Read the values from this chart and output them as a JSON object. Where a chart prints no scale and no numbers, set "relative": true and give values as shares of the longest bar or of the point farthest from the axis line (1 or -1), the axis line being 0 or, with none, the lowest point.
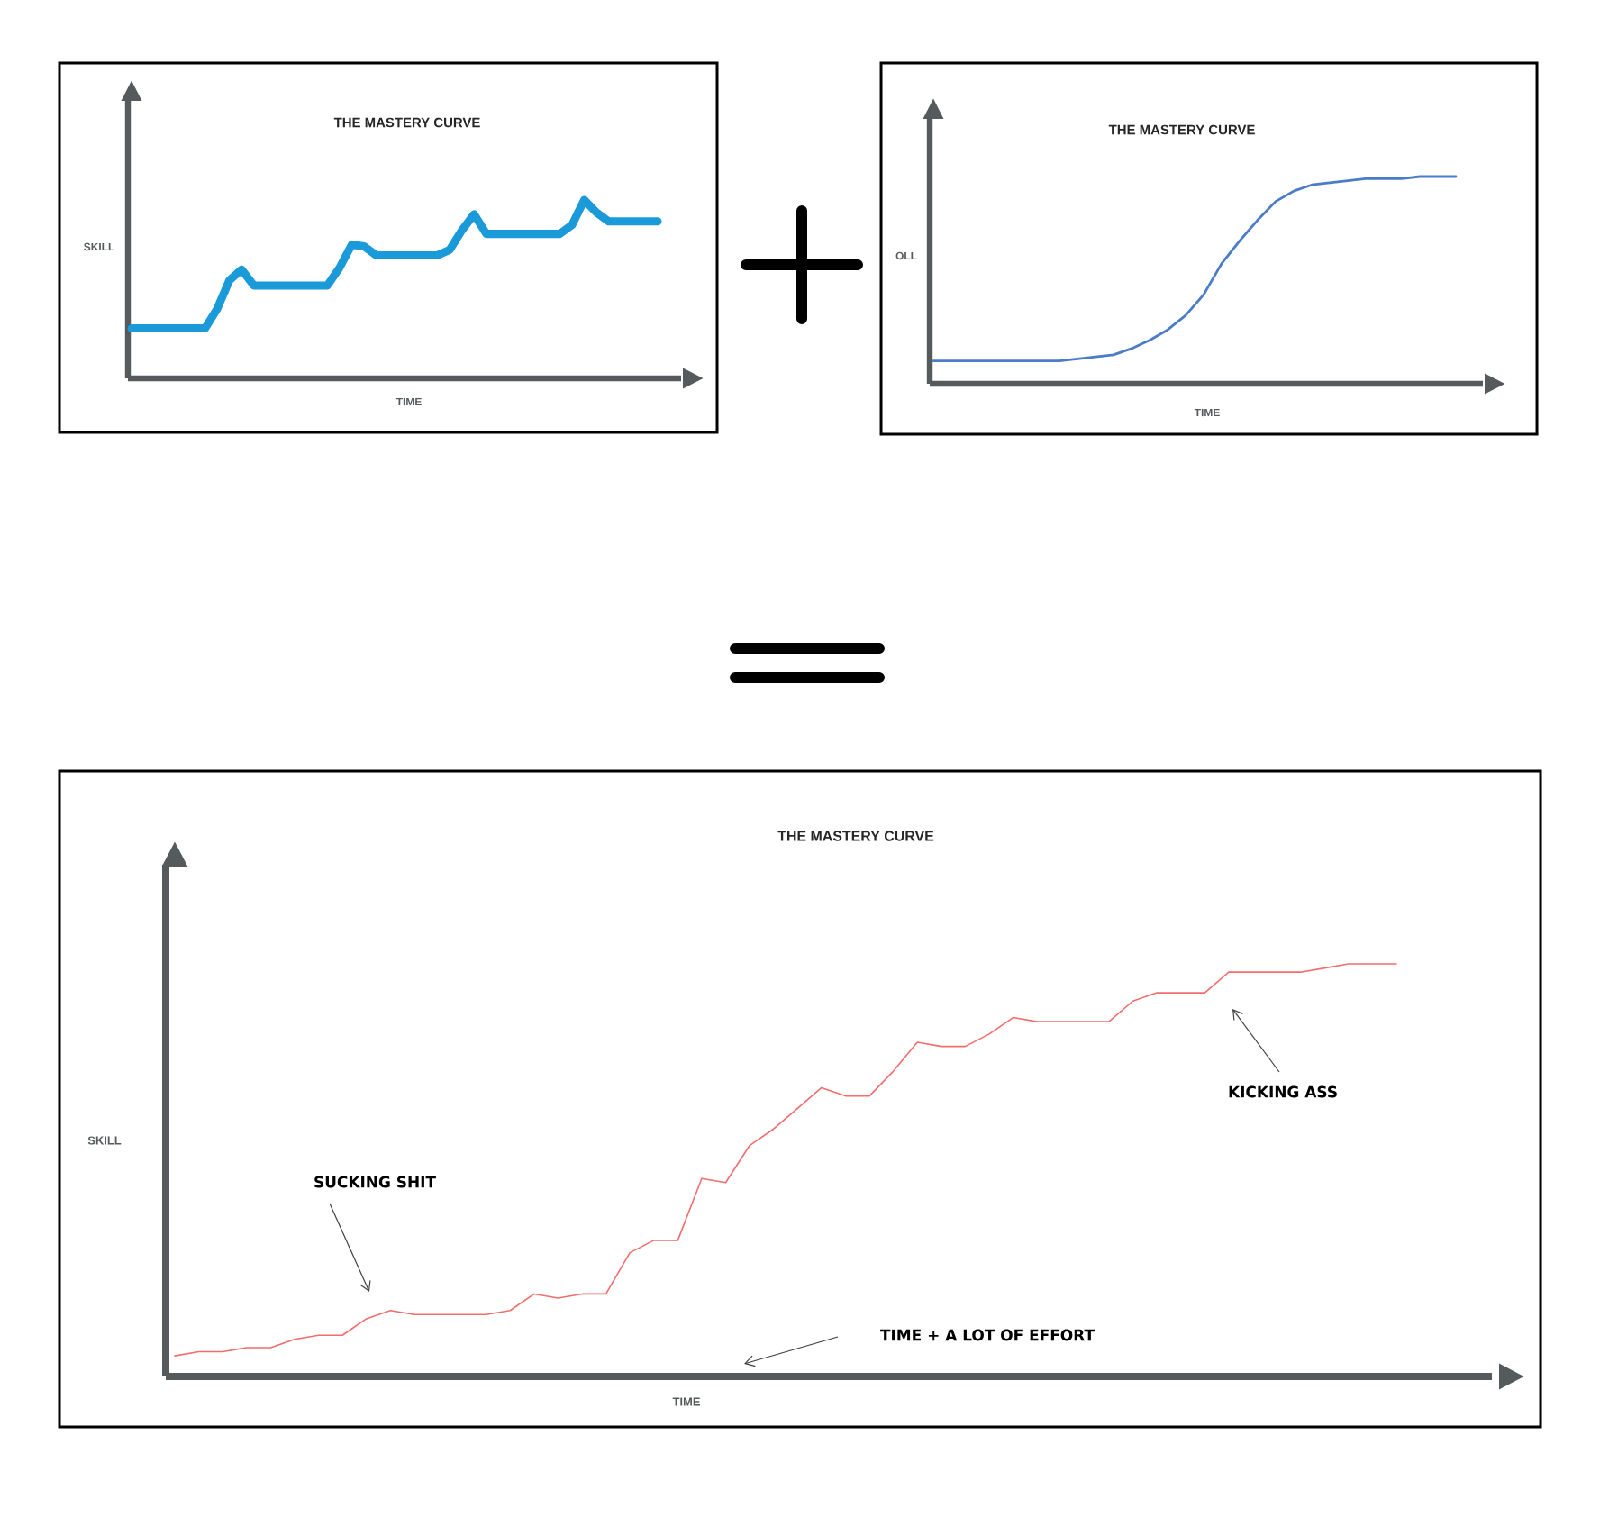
{
  "chart_data": [
    {
      "type": "line",
      "title": "THE MASTERY CURVE",
      "xlabel": "TIME",
      "ylabel": "SKILL",
      "relative": true,
      "categories": [
        null,
        null,
        null,
        null,
        null,
        null,
        null,
        null,
        null,
        null,
        null,
        null,
        null,
        null,
        null,
        null,
        null,
        null,
        null,
        null,
        null,
        null,
        null,
        null,
        null,
        null,
        null,
        null,
        null,
        null,
        null,
        null,
        null,
        null,
        null,
        null,
        null,
        null,
        null,
        null,
        null,
        null,
        null,
        null
      ],
      "series": [
        {
          "color": "#1a9ad8",
          "values": [
            0.28,
            0.28,
            0.28,
            0.28,
            0.28,
            0.28,
            0.28,
            0.39,
            0.55,
            0.61,
            0.52,
            0.52,
            0.52,
            0.52,
            0.52,
            0.52,
            0.52,
            0.62,
            0.75,
            0.74,
            0.69,
            0.69,
            0.69,
            0.69,
            0.69,
            0.69,
            0.72,
            0.83,
            0.92,
            0.81,
            0.81,
            0.81,
            0.81,
            0.81,
            0.81,
            0.81,
            0.86,
            1.0,
            0.93,
            0.88,
            0.88,
            0.88,
            0.88,
            0.88
          ]
        }
      ]
    },
    {
      "type": "line",
      "title": "THE MASTERY CURVE",
      "xlabel": "TIME",
      "ylabel": "OLL",
      "relative": true,
      "categories": [
        null,
        null,
        null,
        null,
        null,
        null,
        null,
        null,
        null,
        null,
        null,
        null,
        null,
        null,
        null,
        null,
        null,
        null,
        null,
        null,
        null,
        null,
        null,
        null,
        null,
        null,
        null,
        null,
        null,
        null
      ],
      "series": [
        {
          "color": "#4a7cc8",
          "values": [
            0.11,
            0.11,
            0.11,
            0.11,
            0.11,
            0.11,
            0.11,
            0.11,
            0.12,
            0.13,
            0.14,
            0.17,
            0.21,
            0.26,
            0.33,
            0.43,
            0.58,
            0.69,
            0.79,
            0.88,
            0.93,
            0.96,
            0.97,
            0.98,
            0.99,
            0.99,
            0.99,
            1.0,
            1.0,
            1.0
          ]
        }
      ]
    },
    {
      "type": "line",
      "title": "THE MASTERY CURVE",
      "xlabel": "TIME",
      "ylabel": "SKILL",
      "relative": true,
      "annotations": [
        "SUCKING SHIT",
        "KICKING ASS",
        "TIME + A LOT OF EFFORT"
      ],
      "categories": [
        null,
        null,
        null,
        null,
        null,
        null,
        null,
        null,
        null,
        null,
        null,
        null,
        null,
        null,
        null,
        null,
        null,
        null,
        null,
        null,
        null,
        null,
        null,
        null,
        null,
        null,
        null,
        null,
        null,
        null,
        null,
        null,
        null,
        null,
        null,
        null,
        null,
        null,
        null,
        null,
        null,
        null,
        null,
        null,
        null,
        null,
        null,
        null,
        null,
        null,
        null,
        null
      ],
      "series": [
        {
          "color": "#f26d6d",
          "values": [
            0.05,
            0.06,
            0.06,
            0.07,
            0.07,
            0.09,
            0.1,
            0.1,
            0.14,
            0.16,
            0.15,
            0.15,
            0.15,
            0.15,
            0.16,
            0.2,
            0.19,
            0.2,
            0.2,
            0.3,
            0.33,
            0.33,
            0.48,
            0.47,
            0.56,
            0.6,
            0.65,
            0.7,
            0.68,
            0.68,
            0.74,
            0.81,
            0.8,
            0.8,
            0.83,
            0.87,
            0.86,
            0.86,
            0.86,
            0.86,
            0.91,
            0.93,
            0.93,
            0.93,
            0.98,
            0.98,
            0.98,
            0.98,
            0.99,
            1.0,
            1.0,
            1.0
          ]
        }
      ]
    }
  ]
}
